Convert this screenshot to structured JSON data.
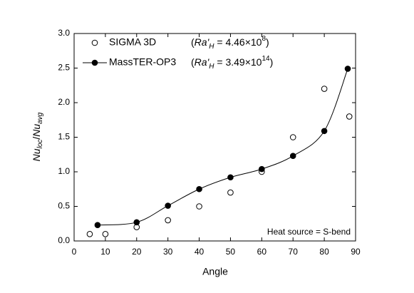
{
  "chart_data": {
    "type": "scatter",
    "x_label": "Angle",
    "y_label_parts": [
      "Nu",
      "loc",
      "/",
      "Nu",
      "avg"
    ],
    "annotation": "Heat source = S-bend",
    "xlim": [
      0,
      90
    ],
    "xticks": [
      0,
      10,
      20,
      30,
      40,
      50,
      60,
      70,
      80,
      90
    ],
    "ylim": [
      0,
      3
    ],
    "yticks": [
      {
        "value": 0,
        "label": "0.0"
      },
      {
        "value": 0.5,
        "label": "0.5"
      },
      {
        "value": 1,
        "label": "1.0"
      },
      {
        "value": 1.5,
        "label": "1.5"
      },
      {
        "value": 2,
        "label": "2.0"
      },
      {
        "value": 2.5,
        "label": "2.5"
      },
      {
        "value": 3,
        "label": "3.0"
      }
    ],
    "series": [
      {
        "name": "SIGMA 3D",
        "color": "#000000",
        "marker": "open",
        "line": false,
        "note_parts": [
          "(",
          "Ra'",
          "H",
          " = 4.46×10",
          "8",
          ")"
        ],
        "x": [
          5,
          10,
          20,
          30,
          40,
          50,
          60,
          70,
          80,
          88
        ],
        "values": [
          0.1,
          0.1,
          0.2,
          0.3,
          0.5,
          0.7,
          1.0,
          1.5,
          2.2,
          1.8
        ]
      },
      {
        "name": "MassTER-OP3",
        "color": "#000000",
        "marker": "filled",
        "line": true,
        "note_parts": [
          "(",
          "Ra'",
          "H",
          " = 3.49×10",
          "14",
          ")"
        ],
        "x": [
          7.5,
          20,
          30,
          40,
          50,
          60,
          70,
          80,
          87.5
        ],
        "values": [
          0.23,
          0.27,
          0.51,
          0.75,
          0.92,
          1.04,
          1.23,
          1.59,
          2.49
        ]
      }
    ]
  }
}
